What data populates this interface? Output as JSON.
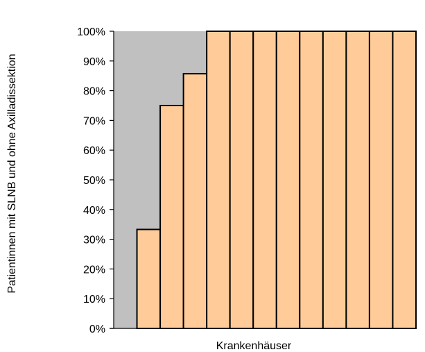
{
  "chart_data": {
    "type": "bar",
    "title": "",
    "xlabel": "Krankenhäuser",
    "ylabel": "Patientinnen mit SLNB und ohne Axilladissektion",
    "ylim": [
      0,
      100
    ],
    "yticks": [
      "0%",
      "10%",
      "20%",
      "30%",
      "40%",
      "50%",
      "60%",
      "70%",
      "80%",
      "90%",
      "100%"
    ],
    "categories": [
      "",
      "",
      "",
      "",
      "",
      "",
      "",
      "",
      "",
      "",
      "",
      "",
      ""
    ],
    "values": [
      0,
      33.3,
      75,
      85.7,
      100,
      100,
      100,
      100,
      100,
      100,
      100,
      100,
      100
    ],
    "grid": false,
    "legend": "none",
    "plot_area_color": "#c0c0c0",
    "bar_color": "#ffcc99",
    "bar_edge_color": "#000000"
  }
}
